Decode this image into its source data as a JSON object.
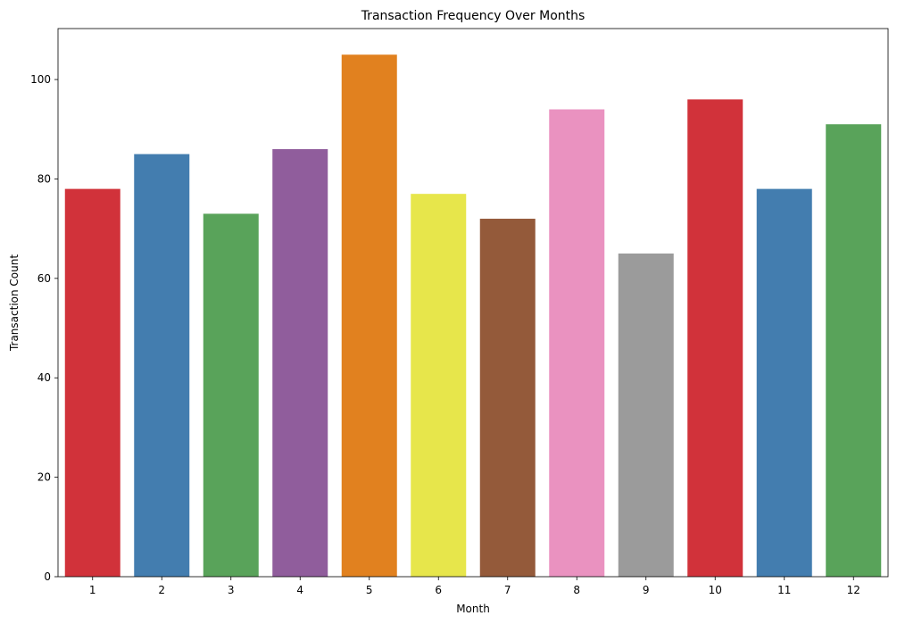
{
  "chart_data": {
    "type": "bar",
    "title": "Transaction Frequency Over Months",
    "xlabel": "Month",
    "ylabel": "Transaction Count",
    "categories": [
      "1",
      "2",
      "3",
      "4",
      "5",
      "6",
      "7",
      "8",
      "9",
      "10",
      "11",
      "12"
    ],
    "values": [
      78,
      85,
      73,
      86,
      105,
      77,
      72,
      94,
      65,
      96,
      78,
      91
    ],
    "colors": [
      "#d1323a",
      "#437daf",
      "#59a35a",
      "#905d9c",
      "#e1811f",
      "#e7e64b",
      "#945a3a",
      "#ea92c0",
      "#9b9b9b",
      "#d1323a",
      "#437daf",
      "#59a35a"
    ],
    "ylim": [
      0,
      110.25
    ],
    "yticks": [
      0,
      20,
      40,
      60,
      80,
      100
    ],
    "yticklabels": [
      "0",
      "20",
      "40",
      "60",
      "80",
      "100"
    ],
    "grid": false,
    "legend": "none"
  }
}
